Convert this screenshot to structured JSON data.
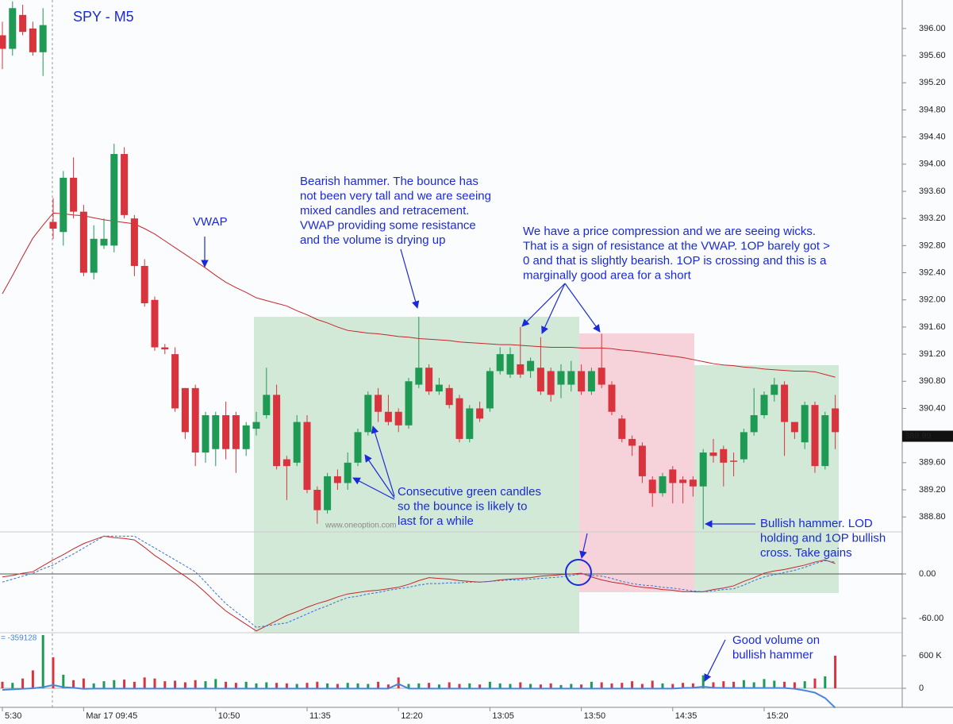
{
  "chart_data": [
    {
      "type": "candlestick",
      "title": "SPY - M5",
      "watermark": "www.oneoption.com",
      "categories": [
        "5:30",
        null,
        null,
        null,
        null,
        null,
        null,
        null,
        "Mar 17 09:45",
        null,
        null,
        null,
        null,
        null,
        null,
        null,
        null,
        null,
        null,
        null,
        null,
        "10:50",
        null,
        null,
        null,
        null,
        null,
        null,
        null,
        null,
        "11:35",
        null,
        null,
        null,
        null,
        null,
        null,
        null,
        null,
        "12:20",
        null,
        null,
        null,
        null,
        null,
        null,
        null,
        null,
        "13:05",
        null,
        null,
        null,
        null,
        null,
        null,
        null,
        null,
        "13:50",
        null,
        null,
        null,
        null,
        null,
        null,
        null,
        null,
        "14:35",
        null,
        null,
        null,
        null,
        null,
        null,
        null,
        null,
        "15:20",
        null,
        null,
        null,
        null,
        null,
        null,
        null
      ],
      "open": [
        395.9,
        395.7,
        396.2,
        396.0,
        395.65,
        393.15,
        393.0,
        393.8,
        393.3,
        392.4,
        392.8,
        392.8,
        394.15,
        393.2,
        392.5,
        392.0,
        391.3,
        391.2,
        390.7,
        390.7,
        389.75,
        389.8,
        390.3,
        390.3,
        389.8,
        390.1,
        390.3,
        390.6,
        389.65,
        389.6,
        390.2,
        389.2,
        388.9,
        389.4,
        389.3,
        389.6,
        390.05,
        390.6,
        390.35,
        390.35,
        390.15,
        390.75,
        391.0,
        390.65,
        390.7,
        390.55,
        389.95,
        390.4,
        390.4,
        390.95,
        390.9,
        391.05,
        390.95,
        391.0,
        390.95,
        390.75,
        390.75,
        390.95,
        390.65,
        391.0,
        390.75,
        390.25,
        389.95,
        389.85,
        389.35,
        389.15,
        389.5,
        389.35,
        389.35,
        389.25,
        389.75,
        389.8,
        389.63,
        389.65,
        390.05,
        390.3,
        390.6,
        390.75,
        390.2,
        389.9,
        390.45,
        389.55,
        390.4
      ],
      "high": [
        396.1,
        396.4,
        396.35,
        396.1,
        396.3,
        393.5,
        393.9,
        394.1,
        393.4,
        393.1,
        393.2,
        394.3,
        394.25,
        393.25,
        392.6,
        392.05,
        391.35,
        391.3,
        390.7,
        390.75,
        390.35,
        390.35,
        390.5,
        390.35,
        390.2,
        390.35,
        391.0,
        390.75,
        389.7,
        390.3,
        390.3,
        389.25,
        389.45,
        389.5,
        389.75,
        390.1,
        390.65,
        390.7,
        390.6,
        390.4,
        390.85,
        391.75,
        391.05,
        390.85,
        390.75,
        390.6,
        390.45,
        390.5,
        391.0,
        391.3,
        391.3,
        391.6,
        391.15,
        391.45,
        391.0,
        391.05,
        391.1,
        391.05,
        391.0,
        391.5,
        390.8,
        390.3,
        390.0,
        389.9,
        389.4,
        389.45,
        389.55,
        389.4,
        389.4,
        389.8,
        389.95,
        389.85,
        389.75,
        390.1,
        390.7,
        390.65,
        390.85,
        390.8,
        390.2,
        390.5,
        390.5,
        390.35,
        390.6
      ],
      "low": [
        395.4,
        395.6,
        395.9,
        395.6,
        395.3,
        392.9,
        392.8,
        393.2,
        392.35,
        392.3,
        392.75,
        392.7,
        393.2,
        392.35,
        391.9,
        391.25,
        391.2,
        390.35,
        389.95,
        389.55,
        389.6,
        389.55,
        389.65,
        389.45,
        389.7,
        390.0,
        390.25,
        389.5,
        389.05,
        389.55,
        389.15,
        388.7,
        388.85,
        389.2,
        389.2,
        389.55,
        390.0,
        390.2,
        390.15,
        390.05,
        390.1,
        390.7,
        390.6,
        390.6,
        390.4,
        389.9,
        389.9,
        390.2,
        390.35,
        390.9,
        390.85,
        390.85,
        390.85,
        390.6,
        390.5,
        390.55,
        390.65,
        390.6,
        390.6,
        390.7,
        390.3,
        389.9,
        389.7,
        389.3,
        388.95,
        389.1,
        389.0,
        389.0,
        389.1,
        388.62,
        389.6,
        389.25,
        389.4,
        389.6,
        390.0,
        390.25,
        390.5,
        389.7,
        389.95,
        389.8,
        389.45,
        389.5,
        389.8
      ],
      "close": [
        395.7,
        396.3,
        395.95,
        395.65,
        396.05,
        393.05,
        393.8,
        393.3,
        392.4,
        392.9,
        392.9,
        394.15,
        393.25,
        392.5,
        391.95,
        391.3,
        391.27,
        390.4,
        390.05,
        389.75,
        390.3,
        390.3,
        389.8,
        389.8,
        390.15,
        390.2,
        390.6,
        389.55,
        389.55,
        390.2,
        389.2,
        388.9,
        389.4,
        389.3,
        389.6,
        390.05,
        390.6,
        390.35,
        390.2,
        390.15,
        390.8,
        391.0,
        390.65,
        390.75,
        390.45,
        389.95,
        390.4,
        390.25,
        390.95,
        391.2,
        391.2,
        390.9,
        391.1,
        390.65,
        390.6,
        390.95,
        390.95,
        390.65,
        390.95,
        390.75,
        390.35,
        389.95,
        389.85,
        389.4,
        389.15,
        389.4,
        389.3,
        389.3,
        389.25,
        389.75,
        389.7,
        389.6,
        389.62,
        390.05,
        390.3,
        390.6,
        390.75,
        390.2,
        390.05,
        390.45,
        389.55,
        390.3,
        390.05
      ],
      "up_color": "#1f9a55",
      "down_color": "#d9343e",
      "overlay": {
        "color": "#c4262c",
        "values": [
          392.09,
          392.36,
          392.64,
          392.91,
          393.1,
          393.28,
          393.27,
          393.25,
          393.24,
          393.21,
          393.18,
          393.16,
          393.14,
          393.12,
          393.05,
          392.97,
          392.87,
          392.77,
          392.67,
          392.57,
          392.47,
          392.36,
          392.26,
          392.18,
          392.11,
          392.03,
          391.99,
          391.95,
          391.91,
          391.84,
          391.78,
          391.71,
          391.66,
          391.6,
          391.55,
          391.53,
          391.51,
          391.5,
          391.48,
          391.46,
          391.45,
          391.43,
          391.42,
          391.41,
          391.4,
          391.38,
          391.37,
          391.36,
          391.35,
          391.34,
          391.34,
          391.33,
          391.32,
          391.31,
          391.3,
          391.3,
          391.3,
          391.29,
          391.29,
          391.29,
          391.28,
          391.26,
          391.25,
          391.23,
          391.21,
          391.19,
          391.17,
          391.15,
          391.12,
          391.09,
          391.06,
          391.04,
          391.03,
          391.01,
          391.0,
          390.98,
          390.97,
          390.96,
          390.95,
          390.95,
          390.94,
          390.9,
          390.86
        ]
      },
      "ylim": [
        388.58,
        396.42
      ],
      "yticks": [
        {
          "value": 396.0,
          "label": "396.00"
        },
        {
          "value": 395.6,
          "label": "395.60"
        },
        {
          "value": 395.2,
          "label": "395.20"
        },
        {
          "value": 394.8,
          "label": "394.80"
        },
        {
          "value": 394.4,
          "label": "394.40"
        },
        {
          "value": 394.0,
          "label": "394.00"
        },
        {
          "value": 393.6,
          "label": "393.60"
        },
        {
          "value": 393.2,
          "label": "393.20"
        },
        {
          "value": 392.8,
          "label": "392.80"
        },
        {
          "value": 392.4,
          "label": "392.40"
        },
        {
          "value": 392.0,
          "label": "392.00"
        },
        {
          "value": 391.6,
          "label": "391.60"
        },
        {
          "value": 391.2,
          "label": "391.20"
        },
        {
          "value": 390.8,
          "label": "390.80"
        },
        {
          "value": 390.4,
          "label": "390.40"
        },
        {
          "value": 390.0,
          "label": "390.00"
        },
        {
          "value": 389.6,
          "label": "389.60"
        },
        {
          "value": 389.2,
          "label": "389.20"
        },
        {
          "value": 388.8,
          "label": "388.80"
        }
      ],
      "last_price": 389.99,
      "annotations": [
        {
          "lines": [
            "VWAP"
          ]
        },
        {
          "lines": [
            "Bearish hammer. The bounce has",
            "not been very tall and we are seeing",
            "mixed candles and retracement.",
            "VWAP providing some resistance",
            "and the volume is drying up"
          ]
        },
        {
          "lines": [
            "We have a price compression and we are seeing wicks.",
            "That is a sign of resistance at the VWAP. 1OP barely got >",
            "0 and that is slightly bearish. 1OP is crossing and this is a",
            "marginally good area for a short"
          ]
        },
        {
          "lines": [
            "Consecutive green candles",
            "so the bounce is likely to",
            "last for a while"
          ]
        },
        {
          "lines": [
            "Bullish hammer. LOD",
            "holding and 1OP bullish",
            "cross. Take gains"
          ]
        },
        {
          "lines": [
            "Good volume on",
            "bullish hammer"
          ]
        }
      ]
    },
    {
      "type": "line",
      "series": [
        {
          "color": "#c4262c",
          "dashed": false,
          "values": [
            -4,
            -2,
            1,
            3,
            11,
            19,
            26,
            34,
            41,
            46,
            51,
            49,
            48,
            46,
            36,
            25,
            16,
            6,
            -3,
            -13,
            -25,
            -38,
            -50,
            -59,
            -68,
            -77,
            -70,
            -63,
            -56,
            -51,
            -45,
            -40,
            -36,
            -31,
            -27,
            -25,
            -23,
            -22,
            -20,
            -18,
            -14,
            -9,
            -5,
            -6,
            -7,
            -9,
            -10,
            -11,
            -10,
            -8,
            -7,
            -6,
            -5,
            -3,
            -2,
            -1,
            0,
            1,
            -4,
            -8,
            -11,
            -13,
            -16,
            -18,
            -19,
            -21,
            -22,
            -24,
            -24,
            -24,
            -21,
            -19,
            -16,
            -10,
            -5,
            1,
            4,
            6,
            9,
            12,
            16,
            19,
            14
          ]
        },
        {
          "color": "#3b6fd6",
          "dashed": true,
          "values": [
            -11,
            -7,
            -3,
            1,
            7,
            12,
            20,
            27,
            35,
            43,
            51,
            51,
            51,
            51,
            43,
            35,
            27,
            19,
            11,
            3,
            -11,
            -26,
            -40,
            -51,
            -61,
            -72,
            -70,
            -68,
            -66,
            -60,
            -54,
            -48,
            -43,
            -37,
            -32,
            -30,
            -27,
            -25,
            -22,
            -20,
            -18,
            -15,
            -13,
            -13,
            -12,
            -12,
            -11,
            -11,
            -10,
            -9,
            -8,
            -8,
            -7,
            -6,
            -5,
            -4,
            -2,
            0,
            -2,
            -3,
            -6,
            -10,
            -13,
            -15,
            -16,
            -18,
            -19,
            -21,
            -23,
            -24,
            -23,
            -21,
            -20,
            -15,
            -9,
            -4,
            -1,
            2,
            5,
            9,
            14,
            18,
            16
          ]
        }
      ],
      "ylim": [
        -79.3,
        56.8
      ],
      "yticks": [
        {
          "value": 0,
          "label": "0.00"
        },
        {
          "value": -60,
          "label": "-60.00"
        }
      ]
    },
    {
      "type": "bar",
      "values": [
        120000,
        100000,
        180000,
        330000,
        980000,
        570000,
        250000,
        150000,
        180000,
        90000,
        130000,
        150000,
        160000,
        120000,
        200000,
        180000,
        130000,
        140000,
        110000,
        150000,
        130000,
        170000,
        120000,
        100000,
        120000,
        90000,
        110000,
        100000,
        90000,
        80000,
        100000,
        120000,
        90000,
        80000,
        100000,
        90000,
        80000,
        120000,
        70000,
        200000,
        80000,
        90000,
        100000,
        70000,
        110000,
        80000,
        90000,
        70000,
        120000,
        90000,
        80000,
        110000,
        80000,
        70000,
        90000,
        60000,
        80000,
        70000,
        120000,
        110000,
        90000,
        100000,
        130000,
        80000,
        140000,
        90000,
        80000,
        100000,
        90000,
        240000,
        110000,
        130000,
        120000,
        150000,
        110000,
        170000,
        140000,
        120000,
        110000,
        130000,
        180000,
        220000,
        600000
      ],
      "line": {
        "color": "#4a86d8",
        "label": "= -359128",
        "values": [
          -30000,
          -20000,
          -10000,
          0,
          20000,
          60000,
          20000,
          10000,
          -10000,
          -5000,
          -5000,
          -5000,
          -5000,
          -5000,
          -5000,
          -5000,
          -5000,
          -5000,
          -5000,
          -5000,
          -5000,
          -5000,
          -5000,
          -5000,
          -5000,
          -5000,
          -5000,
          -5000,
          -5000,
          -5000,
          -5000,
          -5000,
          -5000,
          -5000,
          -5000,
          -5000,
          -5000,
          -5000,
          -5000,
          80000,
          -5000,
          -5000,
          -5000,
          -5000,
          -5000,
          -5000,
          -5000,
          -5000,
          -5000,
          -5000,
          -5000,
          -5000,
          -5000,
          -5000,
          -5000,
          -5000,
          -5000,
          -5000,
          -5000,
          -5000,
          -5000,
          -5000,
          -5000,
          -5000,
          -5000,
          -5000,
          -5000,
          5000,
          10000,
          30000,
          10000,
          5000,
          5000,
          5000,
          5000,
          5000,
          5000,
          5000,
          -10000,
          -40000,
          -80000,
          -180000,
          -359128
        ]
      },
      "ylim": [
        -351000,
        1024000
      ],
      "yticks": [
        {
          "value": 600000,
          "label": "600 K"
        },
        0
      ]
    }
  ]
}
